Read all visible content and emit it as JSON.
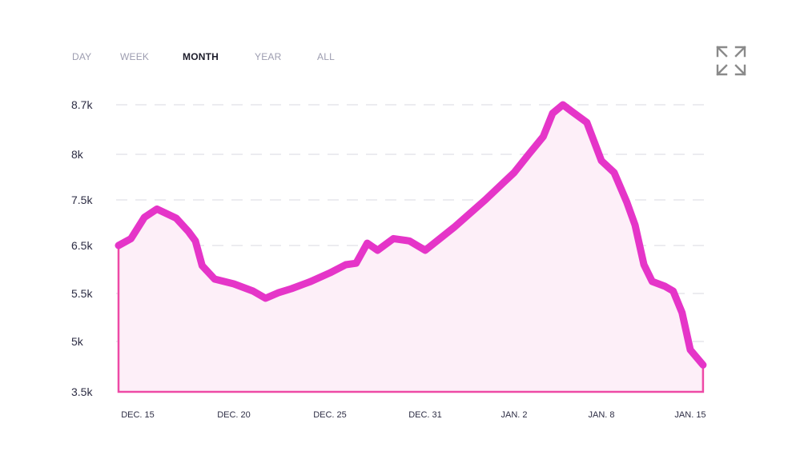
{
  "tabs": [
    {
      "label": "DAY",
      "active": false
    },
    {
      "label": "WEEK",
      "active": false
    },
    {
      "label": "MONTH",
      "active": true
    },
    {
      "label": "YEAR",
      "active": false
    },
    {
      "label": "ALL",
      "active": false
    }
  ],
  "icons": {
    "expand": "expand-arrows-icon"
  },
  "colors": {
    "line": "#e535c8",
    "fill": "#fdeff8",
    "baseline": "#ee4aa6",
    "grid": "#ececf0",
    "text": "#2d2d44",
    "tab_inactive": "#9d9db0",
    "tab_active": "#1d1d2b",
    "icon": "#8a8a8a"
  },
  "chart_data": {
    "type": "area",
    "grid": true,
    "y_ticks": [
      {
        "label": "8.7k",
        "value": 8700
      },
      {
        "label": "8k",
        "value": 8000
      },
      {
        "label": "7.5k",
        "value": 7500
      },
      {
        "label": "6.5k",
        "value": 6500
      },
      {
        "label": "5.5k",
        "value": 5500
      },
      {
        "label": "5k",
        "value": 5000
      },
      {
        "label": "3.5k",
        "value": 3500
      }
    ],
    "x_ticks": [
      {
        "label": "DEC. 15",
        "date": "2023-12-15"
      },
      {
        "label": "DEC. 20",
        "date": "2023-12-20"
      },
      {
        "label": "DEC. 25",
        "date": "2023-12-25"
      },
      {
        "label": "DEC. 31",
        "date": "2023-12-31"
      },
      {
        "label": "JAN. 2",
        "date": "2024-01-02"
      },
      {
        "label": "JAN. 8",
        "date": "2024-01-08"
      },
      {
        "label": "JAN. 15",
        "date": "2024-01-15"
      }
    ],
    "series": [
      {
        "values": [
          [
            "2023-12-14",
            6500
          ],
          [
            "2023-12-15",
            6650
          ],
          [
            "2023-12-15",
            7120
          ],
          [
            "2023-12-16",
            7300
          ],
          [
            "2023-12-17",
            7100
          ],
          [
            "2023-12-18",
            6800
          ],
          [
            "2023-12-18",
            6600
          ],
          [
            "2023-12-18",
            6080
          ],
          [
            "2023-12-19",
            5800
          ],
          [
            "2023-12-20",
            5700
          ],
          [
            "2023-12-21",
            5550
          ],
          [
            "2023-12-22",
            5450
          ],
          [
            "2023-12-22",
            5520
          ],
          [
            "2023-12-23",
            5600
          ],
          [
            "2023-12-24",
            5750
          ],
          [
            "2023-12-25",
            5930
          ],
          [
            "2023-12-26",
            6100
          ],
          [
            "2023-12-27",
            6130
          ],
          [
            "2023-12-27",
            6550
          ],
          [
            "2023-12-28",
            6400
          ],
          [
            "2023-12-29",
            6650
          ],
          [
            "2023-12-30",
            6600
          ],
          [
            "2023-12-31",
            6400
          ],
          [
            "2024-01-01",
            6900
          ],
          [
            "2024-01-01",
            7500
          ],
          [
            "2024-01-02",
            7800
          ],
          [
            "2024-01-03",
            8000
          ],
          [
            "2024-01-04",
            8250
          ],
          [
            "2024-01-05",
            8580
          ],
          [
            "2024-01-05",
            8700
          ],
          [
            "2024-01-06",
            8600
          ],
          [
            "2024-01-07",
            8450
          ],
          [
            "2024-01-08",
            7930
          ],
          [
            "2024-01-09",
            7800
          ],
          [
            "2024-01-10",
            7450
          ],
          [
            "2024-01-11",
            6950
          ],
          [
            "2024-01-11",
            6100
          ],
          [
            "2024-01-12",
            5750
          ],
          [
            "2024-01-13",
            5650
          ],
          [
            "2024-01-14",
            5550
          ],
          [
            "2024-01-14",
            5300
          ],
          [
            "2024-01-15",
            4750
          ],
          [
            "2024-01-16",
            4300
          ]
        ]
      }
    ]
  }
}
